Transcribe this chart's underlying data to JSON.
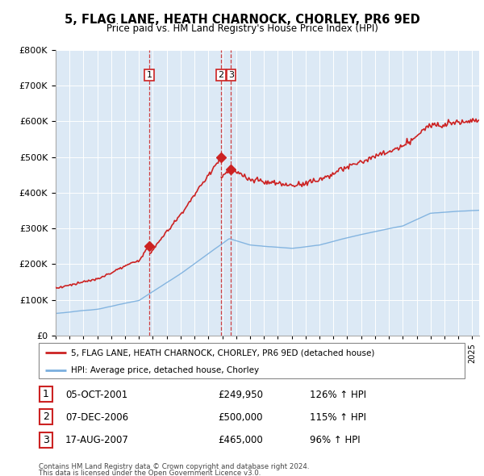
{
  "title": "5, FLAG LANE, HEATH CHARNOCK, CHORLEY, PR6 9ED",
  "subtitle": "Price paid vs. HM Land Registry's House Price Index (HPI)",
  "property_label": "5, FLAG LANE, HEATH CHARNOCK, CHORLEY, PR6 9ED (detached house)",
  "hpi_label": "HPI: Average price, detached house, Chorley",
  "sales": [
    {
      "num": 1,
      "date": "05-OCT-2001",
      "price": 249950,
      "hpi_pct": "126%",
      "arrow": "↑"
    },
    {
      "num": 2,
      "date": "07-DEC-2006",
      "price": 500000,
      "hpi_pct": "115%",
      "arrow": "↑"
    },
    {
      "num": 3,
      "date": "17-AUG-2007",
      "price": 465000,
      "hpi_pct": "96%",
      "arrow": "↑"
    }
  ],
  "sale_times": [
    2001.75,
    2006.917,
    2007.625
  ],
  "sale_prices": [
    249950,
    500000,
    465000
  ],
  "footnote1": "Contains HM Land Registry data © Crown copyright and database right 2024.",
  "footnote2": "This data is licensed under the Open Government Licence v3.0.",
  "hpi_color": "#7aafde",
  "property_color": "#cc2222",
  "vline_color": "#cc2222",
  "chart_bg": "#dce9f5",
  "background_color": "#ffffff",
  "ylim": [
    0,
    800000
  ],
  "yticks": [
    0,
    100000,
    200000,
    300000,
    400000,
    500000,
    600000,
    700000,
    800000
  ],
  "xlim_start": 1995.0,
  "xlim_end": 2025.5
}
